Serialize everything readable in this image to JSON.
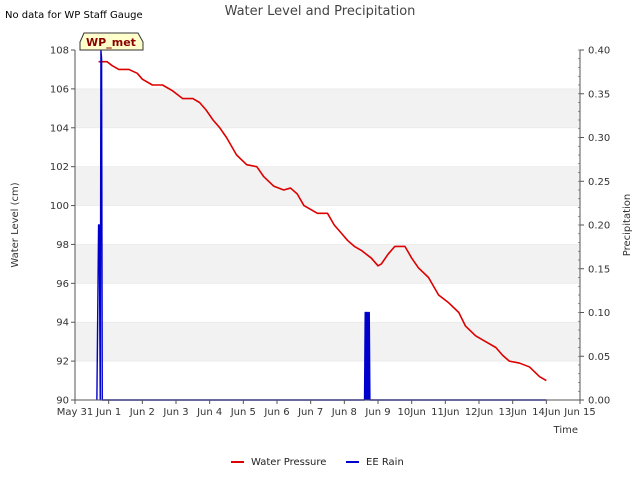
{
  "note": "No data for WP Staff Gauge",
  "badge": "WP_met",
  "colors": {
    "water": "#dd0000",
    "rain": "#0000cc",
    "band": "#f2f2f2",
    "badge_bg": "#ffffcc"
  },
  "chart_data": {
    "type": "line",
    "title": "Water Level and Precipitation",
    "xlabel": "Time",
    "ylabel_left": "Water Level (cm)",
    "ylabel_right": "Precipitation",
    "x_range_days": [
      0,
      15
    ],
    "ylim_left": [
      90,
      108
    ],
    "ylim_right": [
      0,
      0.4
    ],
    "x_ticks": [
      {
        "day": 0,
        "label": "May 31"
      },
      {
        "day": 1,
        "label": "Jun 1"
      },
      {
        "day": 2,
        "label": "Jun 2"
      },
      {
        "day": 3,
        "label": "Jun 3"
      },
      {
        "day": 4,
        "label": "Jun 4"
      },
      {
        "day": 5,
        "label": "Jun 5"
      },
      {
        "day": 6,
        "label": "Jun 6"
      },
      {
        "day": 7,
        "label": "Jun 7"
      },
      {
        "day": 8,
        "label": "Jun 8"
      },
      {
        "day": 9,
        "label": "Jun 9"
      },
      {
        "day": 10,
        "label": "10Jun"
      },
      {
        "day": 11,
        "label": "11Jun"
      },
      {
        "day": 12,
        "label": "12Jun"
      },
      {
        "day": 13,
        "label": "13Jun"
      },
      {
        "day": 14,
        "label": "14Jun"
      },
      {
        "day": 15,
        "label": "Jun 15"
      }
    ],
    "y_ticks_left": [
      "90",
      "92",
      "94",
      "96",
      "98",
      "100",
      "102",
      "104",
      "106",
      "108"
    ],
    "y_ticks_right": [
      "0.00",
      "0.05",
      "0.10",
      "0.15",
      "0.20",
      "0.25",
      "0.30",
      "0.35",
      "0.40"
    ],
    "series": [
      {
        "name": "Water Pressure",
        "axis": "left",
        "x": [
          0.7,
          0.95,
          1.1,
          1.3,
          1.6,
          1.85,
          2.0,
          2.3,
          2.6,
          2.9,
          3.2,
          3.5,
          3.7,
          3.9,
          4.1,
          4.3,
          4.5,
          4.8,
          5.1,
          5.4,
          5.6,
          5.9,
          6.2,
          6.4,
          6.6,
          6.8,
          7.0,
          7.2,
          7.5,
          7.7,
          7.9,
          8.1,
          8.3,
          8.5,
          8.8,
          9.0,
          9.1,
          9.3,
          9.5,
          9.8,
          10.0,
          10.2,
          10.5,
          10.8,
          11.1,
          11.4,
          11.6,
          11.9,
          12.2,
          12.5,
          12.7,
          12.9,
          13.2,
          13.5,
          13.8,
          14.0
        ],
        "y": [
          107.4,
          107.4,
          107.2,
          107.0,
          107.0,
          106.8,
          106.5,
          106.2,
          106.2,
          105.9,
          105.5,
          105.5,
          105.3,
          104.9,
          104.4,
          104.0,
          103.5,
          102.6,
          102.1,
          102.0,
          101.5,
          101.0,
          100.8,
          100.9,
          100.6,
          100.0,
          99.8,
          99.6,
          99.6,
          99.0,
          98.6,
          98.2,
          97.9,
          97.7,
          97.3,
          96.9,
          97.0,
          97.5,
          97.9,
          97.9,
          97.3,
          96.8,
          96.3,
          95.4,
          95.0,
          94.5,
          93.8,
          93.3,
          93.0,
          92.7,
          92.3,
          92.0,
          91.9,
          91.7,
          91.2,
          91.0
        ]
      },
      {
        "name": "EE Rain",
        "axis": "right",
        "x": [
          0.65,
          0.7,
          0.72,
          0.75,
          0.77,
          0.79,
          0.81,
          8.6,
          8.62,
          8.64,
          8.66,
          8.68,
          8.7,
          8.72,
          8.74,
          8.76,
          14.0
        ],
        "y": [
          0.0,
          0.2,
          0.2,
          0.0,
          0.4,
          0.39,
          0.0,
          0.0,
          0.1,
          0.0,
          0.1,
          0.0,
          0.1,
          0.0,
          0.1,
          0.0,
          0.0
        ]
      }
    ],
    "legend_position": "bottom-center",
    "grid": "horizontal-bands"
  }
}
